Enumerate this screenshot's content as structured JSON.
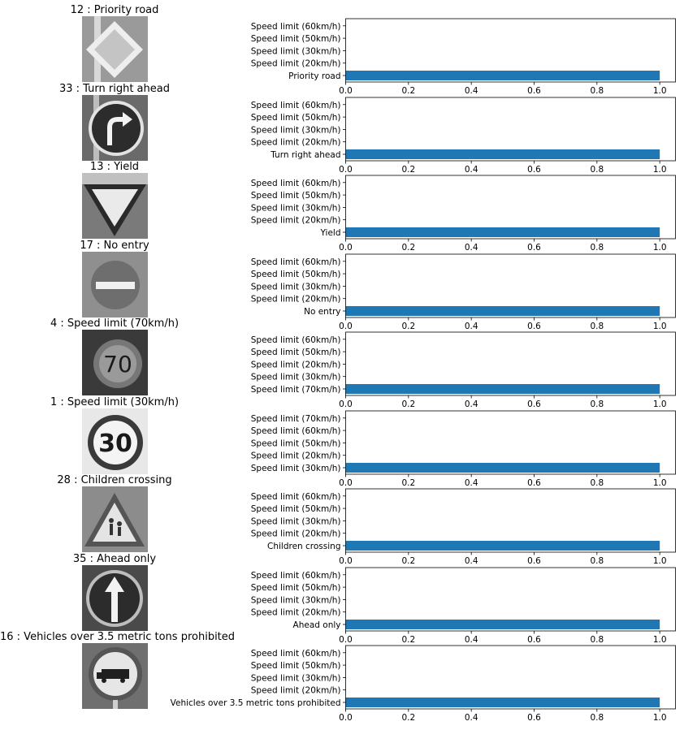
{
  "chart_data": [
    {
      "type": "bar",
      "orientation": "horizontal",
      "title": "12 : Priority road",
      "icon": "priority-road-sign-icon",
      "categories": [
        "Priority road",
        "Speed limit (20km/h)",
        "Speed limit (30km/h)",
        "Speed limit (50km/h)",
        "Speed limit (60km/h)"
      ],
      "values": [
        1.0,
        0.0,
        0.0,
        0.0,
        0.0
      ],
      "xlim": [
        0,
        1.05
      ],
      "xticks": [
        "0.0",
        "0.2",
        "0.4",
        "0.6",
        "0.8",
        "1.0"
      ],
      "bar_color": "#1f77b4"
    },
    {
      "type": "bar",
      "orientation": "horizontal",
      "title": "33 : Turn right ahead",
      "icon": "turn-right-ahead-sign-icon",
      "categories": [
        "Turn right ahead",
        "Speed limit (20km/h)",
        "Speed limit (30km/h)",
        "Speed limit (50km/h)",
        "Speed limit (60km/h)"
      ],
      "values": [
        1.0,
        0.0,
        0.0,
        0.0,
        0.0
      ],
      "xlim": [
        0,
        1.05
      ],
      "xticks": [
        "0.0",
        "0.2",
        "0.4",
        "0.6",
        "0.8",
        "1.0"
      ],
      "bar_color": "#1f77b4"
    },
    {
      "type": "bar",
      "orientation": "horizontal",
      "title": "13 : Yield",
      "icon": "yield-sign-icon",
      "categories": [
        "Yield",
        "Speed limit (20km/h)",
        "Speed limit (30km/h)",
        "Speed limit (50km/h)",
        "Speed limit (60km/h)"
      ],
      "values": [
        1.0,
        0.0,
        0.0,
        0.0,
        0.0
      ],
      "xlim": [
        0,
        1.05
      ],
      "xticks": [
        "0.0",
        "0.2",
        "0.4",
        "0.6",
        "0.8",
        "1.0"
      ],
      "bar_color": "#1f77b4"
    },
    {
      "type": "bar",
      "orientation": "horizontal",
      "title": "17 : No entry",
      "icon": "no-entry-sign-icon",
      "categories": [
        "No entry",
        "Speed limit (20km/h)",
        "Speed limit (30km/h)",
        "Speed limit (50km/h)",
        "Speed limit (60km/h)"
      ],
      "values": [
        1.0,
        0.0,
        0.0,
        0.0,
        0.0
      ],
      "xlim": [
        0,
        1.05
      ],
      "xticks": [
        "0.0",
        "0.2",
        "0.4",
        "0.6",
        "0.8",
        "1.0"
      ],
      "bar_color": "#1f77b4"
    },
    {
      "type": "bar",
      "orientation": "horizontal",
      "title": "4 : Speed limit (70km/h)",
      "icon": "speed-limit-70-sign-icon",
      "categories": [
        "Speed limit (70km/h)",
        "Speed limit (30km/h)",
        "Speed limit (20km/h)",
        "Speed limit (50km/h)",
        "Speed limit (60km/h)"
      ],
      "values": [
        1.0,
        0.0,
        0.0,
        0.0,
        0.0
      ],
      "xlim": [
        0,
        1.05
      ],
      "xticks": [
        "0.0",
        "0.2",
        "0.4",
        "0.6",
        "0.8",
        "1.0"
      ],
      "bar_color": "#1f77b4"
    },
    {
      "type": "bar",
      "orientation": "horizontal",
      "title": "1 : Speed limit (30km/h)",
      "icon": "speed-limit-30-sign-icon",
      "categories": [
        "Speed limit (30km/h)",
        "Speed limit (20km/h)",
        "Speed limit (50km/h)",
        "Speed limit (60km/h)",
        "Speed limit (70km/h)"
      ],
      "values": [
        1.0,
        0.0,
        0.0,
        0.0,
        0.0
      ],
      "xlim": [
        0,
        1.05
      ],
      "xticks": [
        "0.0",
        "0.2",
        "0.4",
        "0.6",
        "0.8",
        "1.0"
      ],
      "bar_color": "#1f77b4"
    },
    {
      "type": "bar",
      "orientation": "horizontal",
      "title": "28 : Children crossing",
      "icon": "children-crossing-sign-icon",
      "categories": [
        "Children crossing",
        "Speed limit (20km/h)",
        "Speed limit (30km/h)",
        "Speed limit (50km/h)",
        "Speed limit (60km/h)"
      ],
      "values": [
        1.0,
        0.0,
        0.0,
        0.0,
        0.0
      ],
      "xlim": [
        0,
        1.05
      ],
      "xticks": [
        "0.0",
        "0.2",
        "0.4",
        "0.6",
        "0.8",
        "1.0"
      ],
      "bar_color": "#1f77b4"
    },
    {
      "type": "bar",
      "orientation": "horizontal",
      "title": "35 : Ahead only",
      "icon": "ahead-only-sign-icon",
      "categories": [
        "Ahead only",
        "Speed limit (20km/h)",
        "Speed limit (30km/h)",
        "Speed limit (50km/h)",
        "Speed limit (60km/h)"
      ],
      "values": [
        1.0,
        0.0,
        0.0,
        0.0,
        0.0
      ],
      "xlim": [
        0,
        1.05
      ],
      "xticks": [
        "0.0",
        "0.2",
        "0.4",
        "0.6",
        "0.8",
        "1.0"
      ],
      "bar_color": "#1f77b4"
    },
    {
      "type": "bar",
      "orientation": "horizontal",
      "title": "16 : Vehicles over 3.5 metric tons prohibited",
      "icon": "vehicles-over-3-5-tons-prohibited-sign-icon",
      "categories": [
        "Vehicles over 3.5 metric tons prohibited",
        "Speed limit (20km/h)",
        "Speed limit (30km/h)",
        "Speed limit (50km/h)",
        "Speed limit (60km/h)"
      ],
      "values": [
        1.0,
        0.0,
        0.0,
        0.0,
        0.0
      ],
      "xlim": [
        0,
        1.05
      ],
      "xticks": [
        "0.0",
        "0.2",
        "0.4",
        "0.6",
        "0.8",
        "1.0"
      ],
      "bar_color": "#1f77b4"
    }
  ]
}
